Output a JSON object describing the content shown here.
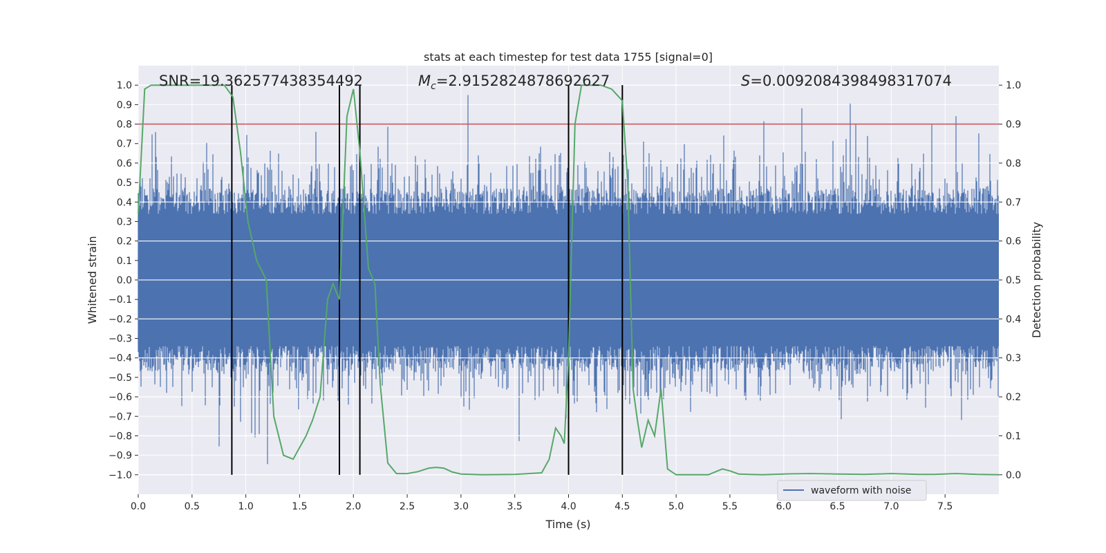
{
  "chart_data": {
    "type": "line",
    "title": "stats at each timestep for test data 1755 [signal=0]",
    "xlabel": "Time (s)",
    "ylabel": "Whitened strain",
    "y2label": "Detection probability",
    "xlim": [
      0,
      8
    ],
    "ylim": [
      -1.1,
      1.1
    ],
    "y2lim": [
      -0.05,
      1.05
    ],
    "xticks": [
      0.0,
      0.5,
      1.0,
      1.5,
      2.0,
      2.5,
      3.0,
      3.5,
      4.0,
      4.5,
      5.0,
      5.5,
      6.0,
      6.5,
      7.0,
      7.5
    ],
    "yticks": [
      1.0,
      0.9,
      0.8,
      0.7,
      0.6,
      0.5,
      0.4,
      0.3,
      0.2,
      0.1,
      0.0,
      -0.1,
      -0.2,
      -0.3,
      -0.4,
      -0.5,
      -0.6,
      -0.7,
      -0.8,
      -0.9,
      -1.0
    ],
    "y2ticks": [
      1.0,
      0.9,
      0.8,
      0.7,
      0.6,
      0.5,
      0.4,
      0.3,
      0.2,
      0.1,
      0.0
    ],
    "grid": true,
    "legend": {
      "placement": "lower-right",
      "entries": [
        "waveform with noise"
      ]
    },
    "annotations": {
      "snr": "SNR=19.362577438354492",
      "mc_symbol": "M",
      "mc_sub": "c",
      "mc_value": "=2.9152824878692627",
      "s_symbol": "S",
      "s_value": "=0.0092084398498317074"
    },
    "threshold": {
      "axis": "y2",
      "value": 0.9,
      "color": "#c44e52"
    },
    "vertical_lines": [
      0.87,
      1.87,
      2.06,
      4.0,
      4.5
    ],
    "colors": {
      "waveform": "#4c72b0",
      "probability": "#55a868",
      "threshold": "#c44e52",
      "vlines": "#000000",
      "background": "#eaeaf2"
    },
    "series": [
      {
        "name": "waveform with noise",
        "axis": "y",
        "description_envelope": "dense noise, core band about ±0.4, spikes up to ±1.0",
        "duration_s": 8
      },
      {
        "axis": "y2",
        "x": [
          0.0,
          0.06,
          0.12,
          0.3,
          0.6,
          0.8,
          0.88,
          0.95,
          1.02,
          1.1,
          1.19,
          1.26,
          1.35,
          1.44,
          1.5,
          1.56,
          1.62,
          1.69,
          1.76,
          1.81,
          1.87,
          1.94,
          2.0,
          2.06,
          2.14,
          2.2,
          2.25,
          2.32,
          2.4,
          2.5,
          2.6,
          2.7,
          2.77,
          2.84,
          2.92,
          3.0,
          3.2,
          3.5,
          3.75,
          3.82,
          3.88,
          3.93,
          3.96,
          4.0,
          4.06,
          4.12,
          4.3,
          4.4,
          4.5,
          4.55,
          4.6,
          4.64,
          4.68,
          4.74,
          4.8,
          4.86,
          4.92,
          5.0,
          5.3,
          5.43,
          5.5,
          5.58,
          5.67,
          5.8,
          6.0,
          6.25,
          6.5,
          6.75,
          7.0,
          7.25,
          7.4,
          7.6,
          7.8,
          8.0
        ],
        "values": [
          0.67,
          0.99,
          1.0,
          1.0,
          1.0,
          1.0,
          0.97,
          0.83,
          0.65,
          0.55,
          0.5,
          0.15,
          0.05,
          0.04,
          0.07,
          0.1,
          0.14,
          0.2,
          0.45,
          0.49,
          0.45,
          0.92,
          0.99,
          0.83,
          0.53,
          0.49,
          0.23,
          0.03,
          0.003,
          0.003,
          0.008,
          0.017,
          0.019,
          0.017,
          0.007,
          0.002,
          0.0,
          0.001,
          0.005,
          0.04,
          0.12,
          0.1,
          0.08,
          0.3,
          0.9,
          1.0,
          1.0,
          0.99,
          0.96,
          0.75,
          0.22,
          0.14,
          0.07,
          0.14,
          0.1,
          0.22,
          0.015,
          0.0,
          0.0,
          0.015,
          0.01,
          0.002,
          0.001,
          0.0,
          0.002,
          0.003,
          0.002,
          0.001,
          0.003,
          0.001,
          0.001,
          0.003,
          0.001,
          0.0
        ]
      }
    ]
  }
}
